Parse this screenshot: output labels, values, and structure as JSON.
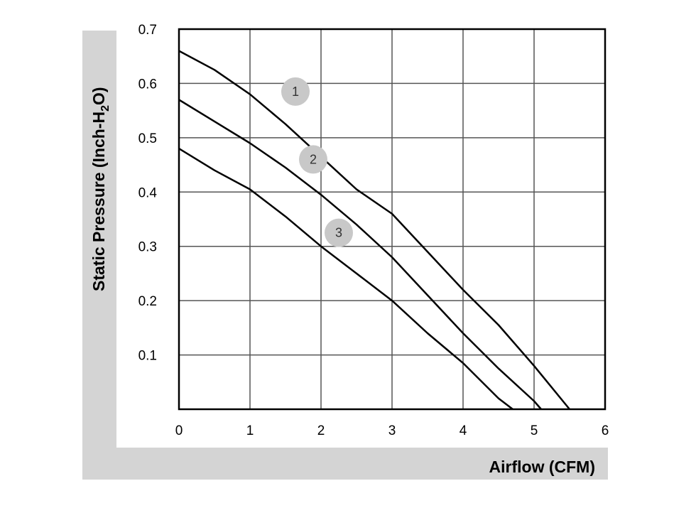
{
  "chart_data": {
    "type": "line",
    "xlabel": "Airflow (CFM)",
    "ylabel_main": "Static Pressure (Inch-H",
    "ylabel_sub": "2",
    "ylabel_end": "O)",
    "xlim": [
      0,
      6
    ],
    "ylim": [
      0,
      0.7
    ],
    "grid": true,
    "x_ticks": [
      0,
      1,
      2,
      3,
      4,
      5,
      6
    ],
    "x_tick_labels": [
      "0",
      "1",
      "2",
      "3",
      "4",
      "5",
      "6"
    ],
    "y_ticks": [
      0.1,
      0.2,
      0.3,
      0.4,
      0.5,
      0.6,
      0.7
    ],
    "y_tick_labels": [
      "0.1",
      "0.2",
      "0.3",
      "0.4",
      "0.5",
      "0.6",
      "0.7"
    ],
    "series": [
      {
        "label": "1",
        "label_at": [
          1.64,
          0.585
        ],
        "x": [
          0,
          0.5,
          1.0,
          1.5,
          2.0,
          2.5,
          3.0,
          3.5,
          4.0,
          4.5,
          5.0,
          5.5
        ],
        "y": [
          0.66,
          0.625,
          0.58,
          0.525,
          0.465,
          0.405,
          0.36,
          0.29,
          0.22,
          0.155,
          0.08,
          0.0
        ]
      },
      {
        "label": "2",
        "label_at": [
          1.89,
          0.46
        ],
        "x": [
          0,
          0.5,
          1.0,
          1.5,
          2.0,
          2.5,
          3.0,
          3.5,
          4.0,
          4.5,
          5.0,
          5.1
        ],
        "y": [
          0.57,
          0.53,
          0.49,
          0.445,
          0.395,
          0.34,
          0.28,
          0.21,
          0.14,
          0.075,
          0.015,
          0.0
        ]
      },
      {
        "label": "3",
        "label_at": [
          2.25,
          0.325
        ],
        "x": [
          0,
          0.5,
          1.0,
          1.5,
          2.0,
          2.5,
          3.0,
          3.5,
          4.0,
          4.5,
          4.7
        ],
        "y": [
          0.48,
          0.44,
          0.405,
          0.355,
          0.3,
          0.25,
          0.2,
          0.14,
          0.085,
          0.02,
          0.0
        ]
      }
    ]
  }
}
